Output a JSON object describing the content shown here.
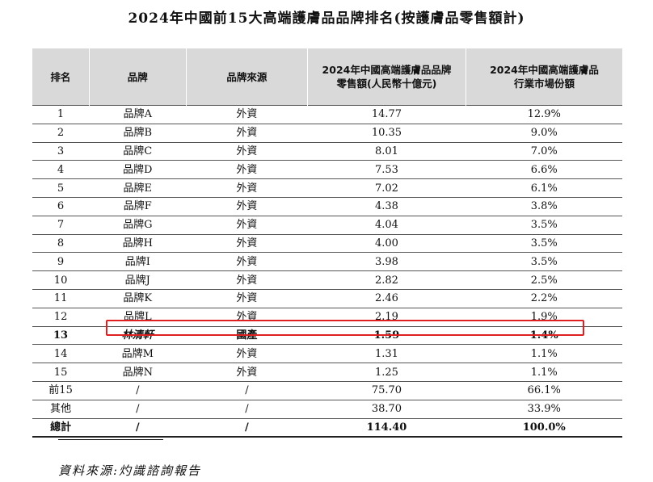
{
  "title": "2024年中國前15大高端護膚品品牌排名(按護膚品零售額計)",
  "table": {
    "headers": {
      "rank": "排名",
      "brand": "品牌",
      "origin": "品牌來源",
      "sales_line1": "2024年中國高端護膚品品牌",
      "sales_line2": "零售額(人民幣十億元)",
      "share_line1": "2024年中國高端護膚品",
      "share_line2": "行業市場份額"
    },
    "rows": [
      {
        "rank": "1",
        "brand": "品牌A",
        "origin": "外資",
        "sales": "14.77",
        "share": "12.9%"
      },
      {
        "rank": "2",
        "brand": "品牌B",
        "origin": "外資",
        "sales": "10.35",
        "share": "9.0%"
      },
      {
        "rank": "3",
        "brand": "品牌C",
        "origin": "外資",
        "sales": "8.01",
        "share": "7.0%"
      },
      {
        "rank": "4",
        "brand": "品牌D",
        "origin": "外資",
        "sales": "7.53",
        "share": "6.6%"
      },
      {
        "rank": "5",
        "brand": "品牌E",
        "origin": "外資",
        "sales": "7.02",
        "share": "6.1%"
      },
      {
        "rank": "6",
        "brand": "品牌F",
        "origin": "外資",
        "sales": "4.38",
        "share": "3.8%"
      },
      {
        "rank": "7",
        "brand": "品牌G",
        "origin": "外資",
        "sales": "4.04",
        "share": "3.5%"
      },
      {
        "rank": "8",
        "brand": "品牌H",
        "origin": "外資",
        "sales": "4.00",
        "share": "3.5%"
      },
      {
        "rank": "9",
        "brand": "品牌I",
        "origin": "外資",
        "sales": "3.98",
        "share": "3.5%"
      },
      {
        "rank": "10",
        "brand": "品牌J",
        "origin": "外資",
        "sales": "2.82",
        "share": "2.5%"
      },
      {
        "rank": "11",
        "brand": "品牌K",
        "origin": "外資",
        "sales": "2.46",
        "share": "2.2%"
      },
      {
        "rank": "12",
        "brand": "品牌L",
        "origin": "外資",
        "sales": "2.19",
        "share": "1.9%"
      },
      {
        "rank": "13",
        "brand": "林清軒",
        "origin": "國產",
        "sales": "1.59",
        "share": "1.4%"
      },
      {
        "rank": "14",
        "brand": "品牌M",
        "origin": "外資",
        "sales": "1.31",
        "share": "1.1%"
      },
      {
        "rank": "15",
        "brand": "品牌N",
        "origin": "外資",
        "sales": "1.25",
        "share": "1.1%"
      }
    ],
    "summary": [
      {
        "rank": "前15",
        "brand": "/",
        "origin": "/",
        "sales": "75.70",
        "share": "66.1%"
      },
      {
        "rank": "其他",
        "brand": "/",
        "origin": "/",
        "sales": "38.70",
        "share": "33.9%"
      },
      {
        "rank": "總計",
        "brand": "/",
        "origin": "/",
        "sales": "114.40",
        "share": "100.0%"
      }
    ]
  },
  "highlight_color": "#e02020",
  "source": "資料來源:灼識諮詢報告"
}
